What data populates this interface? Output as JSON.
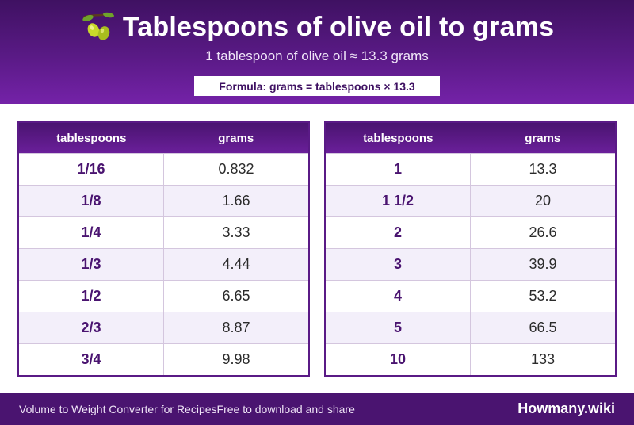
{
  "header": {
    "title": "Tablespoons of olive oil to grams",
    "icon": "olive-icon",
    "subtitle": "1 tablespoon of olive oil ≈ 13.3 grams",
    "formula": "Formula: grams = tablespoons × 13.3"
  },
  "tables": [
    {
      "col1": "tablespoons",
      "col2": "grams",
      "rows": [
        {
          "k": "1/16",
          "v": "0.832"
        },
        {
          "k": "1/8",
          "v": "1.66"
        },
        {
          "k": "1/4",
          "v": "3.33"
        },
        {
          "k": "1/3",
          "v": "4.44"
        },
        {
          "k": "1/2",
          "v": "6.65"
        },
        {
          "k": "2/3",
          "v": "8.87"
        },
        {
          "k": "3/4",
          "v": "9.98"
        }
      ]
    },
    {
      "col1": "tablespoons",
      "col2": "grams",
      "rows": [
        {
          "k": "1",
          "v": "13.3"
        },
        {
          "k": "1 1/2",
          "v": "20"
        },
        {
          "k": "2",
          "v": "26.6"
        },
        {
          "k": "3",
          "v": "39.9"
        },
        {
          "k": "4",
          "v": "53.2"
        },
        {
          "k": "5",
          "v": "66.5"
        },
        {
          "k": "10",
          "v": "133"
        }
      ]
    }
  ],
  "footer": {
    "left_text_1": "Volume to Weight Converter for Recipes",
    "left_text_2": "Free to download and share",
    "brand": "Howmany.wiki"
  },
  "colors": {
    "primary": "#4a1470",
    "accent": "#7422a8",
    "row_alt": "#f3effa"
  }
}
